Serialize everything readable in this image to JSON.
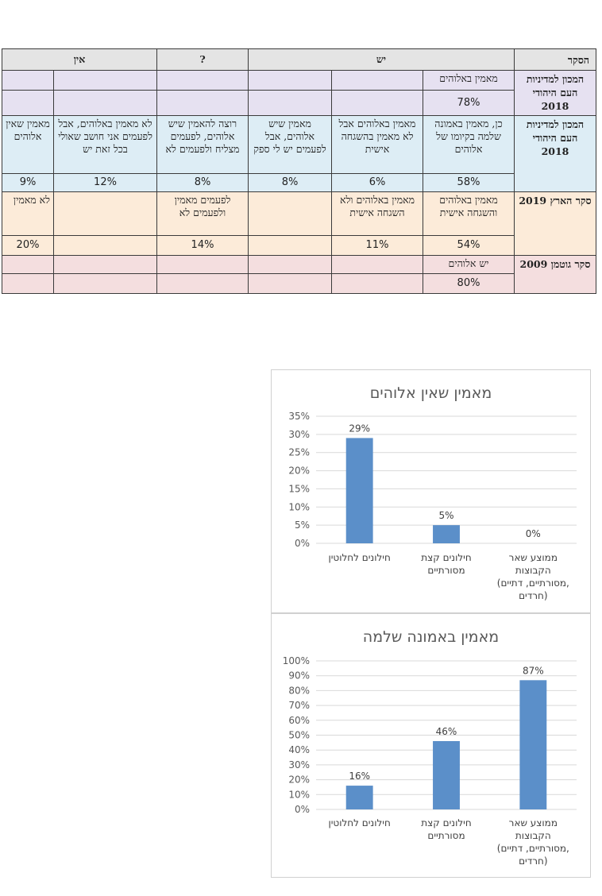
{
  "table": {
    "header": {
      "source": "הסקר",
      "yes": "יש",
      "unknown": "?",
      "no": "אין"
    },
    "rows": [
      {
        "source": "המכון למדיניות העם היהודי 2018",
        "cells": [
          "מאמין באלוהים",
          "",
          "",
          "",
          "",
          ""
        ],
        "pcts": [
          "78%",
          "",
          "",
          "",
          "",
          ""
        ]
      },
      {
        "source": "המכון למדיניות העם היהודי 2018",
        "cells": [
          "כן, מאמין באמונה שלמה בקיומו של אלוהים",
          "מאמין באלוהים אבל לא מאמין בהשגחה אישית",
          "מאמין שיש אלוהים, אבל לפעמים יש לי ספק",
          "רוצה להאמין שיש אלוהים, לפעמים מצליח ולפעמים לא",
          "לא מאמין באלוהים, אבל לפעמים אני חושב שאולי בכל זאת יש",
          "מאמין שאין אלוהים"
        ],
        "pcts": [
          "58%",
          "6%",
          "8%",
          "8%",
          "12%",
          "9%"
        ]
      },
      {
        "source": "סקר הארץ 2019",
        "cells": [
          "מאמין באלוהים והשגחה אישית",
          "מאמין באלוהים ולא השגחה אישית",
          "",
          "לפעמים מאמין ולפעמים לא",
          "",
          "לא מאמין"
        ],
        "pcts": [
          "54%",
          "11%",
          "",
          "14%",
          "",
          "20%"
        ]
      },
      {
        "source": "סקר גוטמן 2009",
        "cells": [
          "יש אלוהים",
          "",
          "",
          "",
          "",
          ""
        ],
        "pcts": [
          "80%",
          "",
          "",
          "",
          "",
          ""
        ]
      }
    ]
  },
  "chart_data": [
    {
      "type": "bar",
      "title": "מאמין שאין אלוהים",
      "categories": [
        "חילונים לחלוטין",
        "חילונים קצת מסורתיים",
        "ממוצע שאר הקבוצות (מסורתיים, דתיים, חרדים)"
      ],
      "category_lines": [
        [
          "חילונים לחלוטין"
        ],
        [
          "חילונים קצת",
          "מסורתיים"
        ],
        [
          "ממוצע שאר",
          "הקבוצות",
          "(מסורתיים, דתיים,",
          "חרדים)"
        ]
      ],
      "values": [
        29,
        5,
        0
      ],
      "data_labels": [
        "29%",
        "5%",
        "0%"
      ],
      "ylim": [
        0,
        35
      ],
      "yticks": [
        0,
        5,
        10,
        15,
        20,
        25,
        30,
        35
      ],
      "tick_suffix": "%",
      "grid": true,
      "bar_color": "#5b8fc9"
    },
    {
      "type": "bar",
      "title": "מאמין באמונה שלמה",
      "categories": [
        "חילונים לחלוטין",
        "חילונים קצת מסורתיים",
        "ממוצע שאר הקבוצות (מסורתיים, דתיים, חרדים)"
      ],
      "category_lines": [
        [
          "חילונים לחלוטין"
        ],
        [
          "חילונים קצת",
          "מסורתיים"
        ],
        [
          "ממוצע שאר",
          "הקבוצות",
          "(מסורתיים, דתיים,",
          "חרדים)"
        ]
      ],
      "values": [
        16,
        46,
        87
      ],
      "data_labels": [
        "16%",
        "46%",
        "87%"
      ],
      "ylim": [
        0,
        100
      ],
      "yticks": [
        0,
        10,
        20,
        30,
        40,
        50,
        60,
        70,
        80,
        90,
        100
      ],
      "tick_suffix": "%",
      "grid": true,
      "bar_color": "#5b8fc9"
    }
  ]
}
